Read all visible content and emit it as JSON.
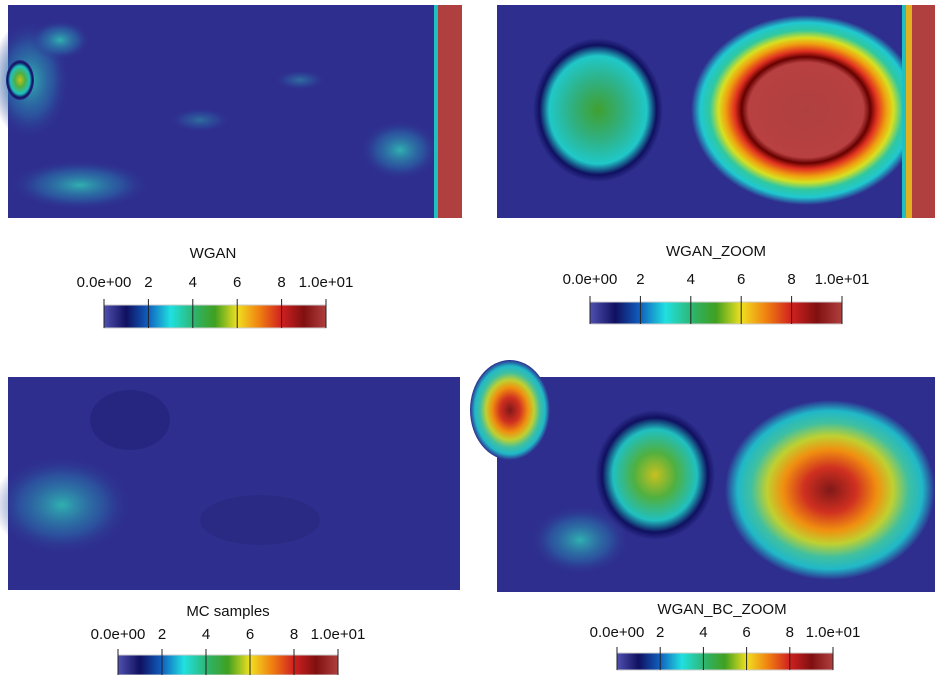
{
  "panels": [
    {
      "title": "WGAN",
      "colorbar": {
        "lim": [
          0,
          10
        ],
        "ticks": [
          {
            "value": 0,
            "label": "0.0e+00"
          },
          2,
          4,
          6,
          8,
          {
            "value": 10,
            "label": "1.0e+01"
          }
        ]
      }
    },
    {
      "title": "WGAN_ZOOM",
      "colorbar": {
        "lim": [
          0,
          10
        ],
        "ticks": [
          {
            "value": 0,
            "label": "0.0e+00"
          },
          2,
          4,
          6,
          8,
          {
            "value": 10,
            "label": "1.0e+01"
          }
        ]
      }
    },
    {
      "title": "MC samples",
      "colorbar": {
        "lim": [
          0,
          10
        ],
        "ticks": [
          {
            "value": 0,
            "label": "0.0e+00"
          },
          2,
          4,
          6,
          8,
          {
            "value": 10,
            "label": "1.0e+01"
          }
        ]
      }
    },
    {
      "title": "WGAN_BC_ZOOM",
      "colorbar": {
        "lim": [
          0,
          10
        ],
        "ticks": [
          {
            "value": 0,
            "label": "0.0e+00"
          },
          2,
          4,
          6,
          8,
          {
            "value": 10,
            "label": "1.0e+01"
          }
        ]
      }
    }
  ]
}
